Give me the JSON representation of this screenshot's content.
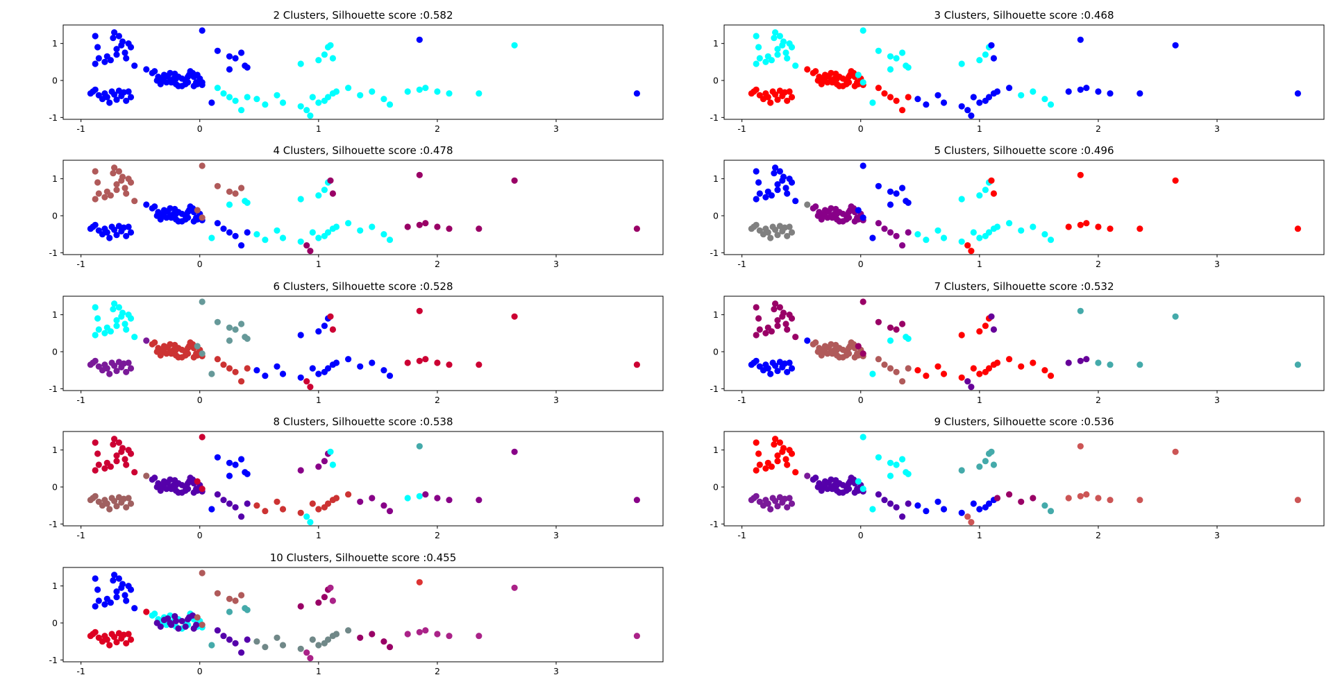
{
  "figure": {
    "layout": "5 rows x 2 columns grid of scatter subplots; last row has only the left subplot"
  },
  "chart_data": [
    {
      "type": "scatter",
      "title": "2 Clusters, Silhouette score :0.582",
      "xlim": [
        -1.15,
        3.9
      ],
      "ylim": [
        -1.05,
        1.5
      ],
      "xticks": [
        -1,
        0,
        1,
        2,
        3
      ],
      "yticks": [
        -1,
        0,
        1
      ],
      "colors": [
        "#0000ff",
        "#00ffff"
      ],
      "labels": [
        0,
        0,
        0,
        0,
        0,
        0,
        0,
        0,
        0,
        0,
        0,
        0,
        0,
        0,
        0,
        0,
        0,
        0,
        0,
        0,
        0,
        0,
        0,
        0,
        0,
        0,
        0,
        0,
        0,
        0,
        0,
        0,
        0,
        0,
        0,
        0,
        0,
        0,
        0,
        0,
        0,
        0,
        0,
        0,
        0,
        0,
        0,
        0,
        0,
        0,
        0,
        0,
        0,
        0,
        0,
        0,
        0,
        0,
        0,
        0,
        0,
        0,
        0,
        0,
        0,
        0,
        0,
        0,
        0,
        0,
        0,
        0,
        0,
        0,
        0,
        0,
        0,
        0,
        0,
        0,
        0,
        0,
        1,
        1,
        1,
        1,
        1,
        1,
        1,
        1,
        1,
        1,
        1,
        1,
        1,
        1,
        1,
        1,
        1,
        1,
        1,
        1,
        1,
        1,
        1,
        1,
        1,
        1,
        1,
        1,
        1,
        1,
        1,
        1,
        1,
        1,
        1,
        1,
        1
      ]
    },
    {
      "type": "scatter",
      "title": "3 Clusters, Silhouette score :0.468",
      "xlim": [
        -1.15,
        3.9
      ],
      "ylim": [
        -1.05,
        1.5
      ],
      "xticks": [
        -1,
        0,
        1,
        2,
        3
      ],
      "yticks": [
        -1,
        0,
        1
      ],
      "colors": [
        "#00ffff",
        "#ff0000",
        "#0000ff"
      ],
      "labels": [
        0,
        0,
        0,
        0,
        0,
        0,
        0,
        0,
        0,
        0,
        0,
        0,
        0,
        0,
        0,
        0,
        0,
        0,
        0,
        1,
        1,
        1,
        1,
        1,
        1,
        1,
        1,
        1,
        1,
        1,
        1,
        1,
        1,
        1,
        1,
        1,
        1,
        1,
        1,
        1,
        1,
        1,
        1,
        1,
        1,
        1,
        1,
        1,
        1,
        1,
        1,
        1,
        1,
        1,
        1,
        1,
        1,
        1,
        1,
        1,
        1,
        1,
        1,
        1,
        1,
        1,
        1,
        1,
        1,
        1,
        1,
        0,
        0,
        0,
        0,
        0,
        0,
        0,
        0,
        0,
        0,
        0,
        1,
        1,
        1,
        1,
        1,
        1,
        2,
        2,
        2,
        2,
        2,
        2,
        2,
        2,
        2,
        2,
        2,
        2,
        0,
        0,
        0,
        0,
        0,
        0,
        0,
        0,
        2,
        2,
        2,
        2,
        2,
        2,
        2,
        2,
        2,
        2,
        2,
        2,
        2
      ]
    },
    {
      "type": "scatter",
      "title": "4 Clusters, Silhouette score :0.478",
      "xlim": [
        -1.15,
        3.9
      ],
      "ylim": [
        -1.05,
        1.5
      ],
      "xticks": [
        -1,
        0,
        1,
        2,
        3
      ],
      "yticks": [
        -1,
        0,
        1
      ],
      "colors": [
        "#b05a5a",
        "#0000ff",
        "#00ffff",
        "#990066"
      ],
      "labels": [
        0,
        0,
        0,
        0,
        0,
        0,
        0,
        0,
        0,
        0,
        0,
        0,
        0,
        0,
        0,
        0,
        0,
        0,
        0,
        1,
        1,
        1,
        1,
        1,
        1,
        1,
        1,
        1,
        1,
        1,
        1,
        1,
        1,
        1,
        1,
        1,
        1,
        1,
        1,
        1,
        1,
        1,
        1,
        1,
        1,
        1,
        1,
        1,
        1,
        1,
        1,
        1,
        1,
        1,
        1,
        1,
        1,
        1,
        1,
        1,
        1,
        1,
        1,
        1,
        1,
        1,
        1,
        1,
        1,
        1,
        1,
        0,
        0,
        0,
        0,
        0,
        0,
        0,
        2,
        2,
        2,
        2,
        1,
        1,
        1,
        1,
        1,
        1,
        2,
        2,
        2,
        2,
        2,
        2,
        2,
        2,
        2,
        2,
        2,
        2,
        2,
        2,
        2,
        2,
        2,
        2,
        2,
        2,
        3,
        3,
        3,
        3,
        3,
        3,
        3,
        3,
        3,
        3,
        3,
        3,
        3
      ]
    },
    {
      "type": "scatter",
      "title": "5 Clusters, Silhouette score :0.496",
      "xlim": [
        -1.15,
        3.9
      ],
      "ylim": [
        -1.05,
        1.5
      ],
      "xticks": [
        -1,
        0,
        1,
        2,
        3
      ],
      "yticks": [
        -1,
        0,
        1
      ],
      "colors": [
        "#0000ff",
        "#808080",
        "#880088",
        "#00ffff",
        "#ff0000"
      ],
      "labels": [
        0,
        0,
        0,
        0,
        0,
        0,
        0,
        0,
        0,
        0,
        0,
        0,
        0,
        0,
        0,
        0,
        0,
        0,
        0,
        1,
        1,
        1,
        1,
        1,
        1,
        1,
        1,
        1,
        1,
        1,
        1,
        1,
        1,
        1,
        1,
        1,
        1,
        2,
        2,
        2,
        2,
        2,
        2,
        2,
        2,
        2,
        2,
        2,
        2,
        2,
        2,
        2,
        2,
        2,
        2,
        2,
        2,
        2,
        2,
        2,
        2,
        2,
        2,
        2,
        2,
        2,
        2,
        2,
        2,
        2,
        2,
        0,
        0,
        0,
        0,
        0,
        0,
        0,
        0,
        0,
        0,
        0,
        2,
        2,
        2,
        2,
        2,
        2,
        3,
        3,
        3,
        3,
        3,
        3,
        3,
        3,
        3,
        3,
        3,
        3,
        3,
        3,
        3,
        3,
        3,
        3,
        3,
        3,
        4,
        4,
        4,
        4,
        4,
        4,
        4,
        4,
        4,
        4,
        4,
        4,
        4
      ]
    },
    {
      "type": "scatter",
      "title": "6 Clusters, Silhouette score :0.528",
      "xlim": [
        -1.15,
        3.9
      ],
      "ylim": [
        -1.05,
        1.5
      ],
      "xticks": [
        -1,
        0,
        1,
        2,
        3
      ],
      "yticks": [
        -1,
        0,
        1
      ],
      "colors": [
        "#00ffff",
        "#7a1a99",
        "#cc3333",
        "#669999",
        "#0000ff",
        "#cc0033"
      ],
      "labels": [
        0,
        0,
        0,
        0,
        0,
        0,
        0,
        0,
        0,
        0,
        0,
        0,
        0,
        0,
        0,
        0,
        0,
        0,
        0,
        1,
        1,
        1,
        1,
        1,
        1,
        1,
        1,
        1,
        1,
        1,
        1,
        1,
        1,
        1,
        1,
        1,
        1,
        2,
        2,
        2,
        2,
        2,
        2,
        2,
        2,
        2,
        2,
        2,
        2,
        2,
        2,
        2,
        2,
        2,
        2,
        2,
        2,
        2,
        2,
        2,
        2,
        2,
        2,
        2,
        2,
        2,
        2,
        2,
        2,
        2,
        2,
        3,
        3,
        3,
        3,
        3,
        3,
        3,
        3,
        3,
        3,
        3,
        2,
        2,
        2,
        2,
        2,
        2,
        4,
        4,
        4,
        4,
        4,
        4,
        4,
        4,
        4,
        4,
        4,
        4,
        4,
        4,
        4,
        4,
        4,
        4,
        4,
        4,
        5,
        5,
        5,
        5,
        5,
        5,
        5,
        5,
        5,
        5,
        5,
        5,
        5
      ]
    },
    {
      "type": "scatter",
      "title": "7 Clusters, Silhouette score :0.532",
      "xlim": [
        -1.15,
        3.9
      ],
      "ylim": [
        -1.05,
        1.5
      ],
      "xticks": [
        -1,
        0,
        1,
        2,
        3
      ],
      "yticks": [
        -1,
        0,
        1
      ],
      "colors": [
        "#990066",
        "#0000ff",
        "#b05a5a",
        "#00ffff",
        "#ff0000",
        "#44aaaa",
        "#660099"
      ],
      "labels": [
        0,
        0,
        0,
        0,
        0,
        0,
        0,
        0,
        0,
        0,
        0,
        0,
        0,
        0,
        0,
        0,
        0,
        0,
        0,
        1,
        1,
        1,
        1,
        1,
        1,
        1,
        1,
        1,
        1,
        1,
        1,
        1,
        1,
        1,
        1,
        1,
        1,
        2,
        2,
        2,
        2,
        2,
        2,
        2,
        2,
        2,
        2,
        2,
        2,
        2,
        2,
        2,
        2,
        2,
        2,
        2,
        2,
        2,
        2,
        2,
        2,
        2,
        2,
        2,
        2,
        2,
        2,
        2,
        2,
        2,
        2,
        0,
        0,
        0,
        0,
        0,
        0,
        0,
        3,
        3,
        3,
        3,
        2,
        2,
        2,
        2,
        2,
        2,
        4,
        4,
        4,
        4,
        4,
        4,
        4,
        4,
        4,
        4,
        4,
        4,
        4,
        4,
        4,
        4,
        4,
        4,
        4,
        4,
        6,
        6,
        6,
        6,
        6,
        6,
        6,
        5,
        5,
        5,
        5,
        5,
        5
      ]
    },
    {
      "type": "scatter",
      "title": "8 Clusters, Silhouette score :0.538",
      "xlim": [
        -1.15,
        3.9
      ],
      "ylim": [
        -1.05,
        1.5
      ],
      "xticks": [
        -1,
        0,
        1,
        2,
        3
      ],
      "yticks": [
        -1,
        0,
        1
      ],
      "colors": [
        "#cc0033",
        "#a06060",
        "#5500aa",
        "#0000ff",
        "#cc3333",
        "#880088",
        "#00ffff",
        "#44aaaa"
      ],
      "labels": [
        0,
        0,
        0,
        0,
        0,
        0,
        0,
        0,
        0,
        0,
        0,
        0,
        0,
        0,
        0,
        0,
        0,
        0,
        0,
        1,
        1,
        1,
        1,
        1,
        1,
        1,
        1,
        1,
        1,
        1,
        1,
        1,
        1,
        1,
        1,
        1,
        1,
        2,
        2,
        2,
        2,
        2,
        2,
        2,
        2,
        2,
        2,
        2,
        2,
        2,
        2,
        2,
        2,
        2,
        2,
        2,
        2,
        2,
        2,
        2,
        2,
        2,
        2,
        2,
        2,
        2,
        2,
        2,
        2,
        2,
        2,
        0,
        0,
        0,
        3,
        3,
        3,
        3,
        3,
        3,
        3,
        3,
        2,
        2,
        2,
        2,
        2,
        2,
        4,
        4,
        4,
        4,
        4,
        4,
        4,
        4,
        4,
        4,
        4,
        4,
        5,
        5,
        5,
        5,
        5,
        5,
        5,
        5,
        6,
        6,
        6,
        6,
        6,
        6,
        5,
        5,
        5,
        5,
        5,
        5,
        7
      ]
    },
    {
      "type": "scatter",
      "title": "9 Clusters, Silhouette score :0.536",
      "xlim": [
        -1.15,
        3.9
      ],
      "ylim": [
        -1.05,
        1.5
      ],
      "xticks": [
        -1,
        0,
        1,
        2,
        3
      ],
      "yticks": [
        -1,
        0,
        1
      ],
      "colors": [
        "#ff0000",
        "#7a1a99",
        "#5500aa",
        "#00ffff",
        "#0000ff",
        "#990066",
        "#44aaaa",
        "#cc5555",
        "#777777"
      ],
      "labels": [
        0,
        0,
        0,
        0,
        0,
        0,
        0,
        0,
        0,
        0,
        0,
        0,
        0,
        0,
        0,
        0,
        0,
        0,
        0,
        1,
        1,
        1,
        1,
        1,
        1,
        1,
        1,
        1,
        1,
        1,
        1,
        1,
        1,
        1,
        1,
        1,
        1,
        2,
        2,
        2,
        2,
        2,
        2,
        2,
        2,
        2,
        2,
        2,
        2,
        2,
        2,
        2,
        2,
        2,
        2,
        2,
        2,
        2,
        2,
        2,
        2,
        2,
        2,
        2,
        2,
        2,
        2,
        2,
        2,
        2,
        2,
        3,
        3,
        3,
        3,
        3,
        3,
        3,
        3,
        3,
        3,
        3,
        2,
        2,
        2,
        2,
        2,
        2,
        4,
        4,
        4,
        4,
        4,
        4,
        4,
        4,
        4,
        4,
        5,
        5,
        5,
        5,
        6,
        6,
        6,
        6,
        6,
        6,
        6,
        6,
        7,
        7,
        7,
        7,
        7,
        7,
        7,
        7,
        7,
        7,
        7,
        6,
        8
      ]
    },
    {
      "type": "scatter",
      "title": "10 Clusters, Silhouette score :0.455",
      "xlim": [
        -1.15,
        3.9
      ],
      "ylim": [
        -1.05,
        1.5
      ],
      "xticks": [
        -1,
        0,
        1,
        2,
        3
      ],
      "yticks": [
        -1,
        0,
        1
      ],
      "colors": [
        "#0000ff",
        "#dd0022",
        "#00ffff",
        "#5500aa",
        "#b05a5a",
        "#708888",
        "#990066",
        "#aa2288",
        "#44aaaa",
        "#dd3333"
      ],
      "labels": [
        0,
        0,
        0,
        0,
        0,
        0,
        0,
        0,
        0,
        0,
        0,
        0,
        0,
        0,
        0,
        0,
        0,
        0,
        0,
        1,
        1,
        1,
        1,
        1,
        1,
        1,
        1,
        1,
        1,
        1,
        1,
        1,
        1,
        1,
        1,
        1,
        1,
        2,
        2,
        2,
        2,
        2,
        2,
        2,
        2,
        2,
        2,
        2,
        2,
        2,
        2,
        2,
        2,
        2,
        2,
        3,
        3,
        3,
        3,
        3,
        3,
        3,
        3,
        3,
        3,
        3,
        3,
        3,
        3,
        3,
        3,
        4,
        4,
        4,
        4,
        4,
        4,
        4,
        8,
        8,
        8,
        8,
        3,
        3,
        3,
        3,
        3,
        3,
        5,
        5,
        5,
        5,
        5,
        5,
        5,
        5,
        5,
        5,
        5,
        5,
        6,
        6,
        6,
        6,
        6,
        6,
        6,
        6,
        7,
        7,
        7,
        7,
        7,
        7,
        7,
        7,
        7,
        7,
        7,
        7,
        9
      ]
    }
  ],
  "points": {
    "x": [
      -0.88,
      -0.86,
      -0.85,
      -0.72,
      -0.68,
      -0.65,
      -0.6,
      -0.58,
      -0.63,
      -0.7,
      -0.78,
      -0.62,
      -0.75,
      -0.8,
      -0.55,
      -0.88,
      -0.7,
      -0.66,
      -0.73,
      -0.92,
      -0.9,
      -0.88,
      -0.85,
      -0.82,
      -0.8,
      -0.78,
      -0.76,
      -0.74,
      -0.72,
      -0.7,
      -0.68,
      -0.66,
      -0.64,
      -0.62,
      -0.6,
      -0.58,
      -0.45,
      -0.4,
      -0.38,
      -0.35,
      -0.32,
      -0.3,
      -0.28,
      -0.25,
      -0.22,
      -0.2,
      -0.18,
      -0.15,
      -0.12,
      -0.1,
      -0.08,
      -0.05,
      -0.02,
      0.0,
      0.02,
      -0.36,
      -0.33,
      -0.3,
      -0.27,
      -0.24,
      -0.21,
      -0.18,
      -0.15,
      -0.12,
      -0.09,
      -0.06,
      -0.03,
      -0.25,
      -0.2,
      -0.1,
      -0.05,
      -0.02,
      0.02,
      0.02,
      0.15,
      0.25,
      0.3,
      0.35,
      0.38,
      0.4,
      0.25,
      0.1,
      0.15,
      0.2,
      0.25,
      0.3,
      0.35,
      0.4,
      0.48,
      0.55,
      0.65,
      0.7,
      0.85,
      0.95,
      1.0,
      1.05,
      1.08,
      1.12,
      1.15,
      1.25,
      1.35,
      1.45,
      1.55,
      1.6,
      0.85,
      1.0,
      1.05,
      1.08,
      1.1,
      1.12,
      0.9,
      0.93,
      1.75,
      1.85,
      1.9,
      2.0,
      2.1,
      2.35,
      2.65,
      3.68,
      1.85
    ],
    "y": [
      1.2,
      0.9,
      0.6,
      1.3,
      1.2,
      1.05,
      1.0,
      0.9,
      0.75,
      0.7,
      0.65,
      0.6,
      0.55,
      0.5,
      0.4,
      0.45,
      0.85,
      0.95,
      1.15,
      -0.35,
      -0.3,
      -0.25,
      -0.4,
      -0.5,
      -0.35,
      -0.45,
      -0.6,
      -0.3,
      -0.38,
      -0.52,
      -0.28,
      -0.42,
      -0.32,
      -0.55,
      -0.3,
      -0.45,
      0.3,
      0.2,
      0.25,
      0.1,
      0.0,
      0.15,
      -0.05,
      0.2,
      0.05,
      -0.1,
      0.1,
      -0.15,
      0.0,
      -0.05,
      0.25,
      0.1,
      -0.1,
      0.05,
      -0.12,
      0.0,
      -0.1,
      0.08,
      0.12,
      -0.05,
      0.18,
      -0.15,
      0.05,
      -0.1,
      0.15,
      0.2,
      -0.05,
      0.0,
      0.05,
      0.1,
      -0.15,
      0.15,
      -0.05,
      1.35,
      0.8,
      0.65,
      0.6,
      0.75,
      0.4,
      0.35,
      0.3,
      -0.6,
      -0.2,
      -0.35,
      -0.45,
      -0.55,
      -0.8,
      -0.45,
      -0.5,
      -0.65,
      -0.4,
      -0.6,
      -0.7,
      -0.45,
      -0.6,
      -0.55,
      -0.45,
      -0.35,
      -0.3,
      -0.2,
      -0.4,
      -0.3,
      -0.5,
      -0.65,
      0.45,
      0.55,
      0.7,
      0.9,
      0.95,
      0.6,
      -0.8,
      -0.95,
      -0.3,
      -0.25,
      -0.2,
      -0.3,
      -0.35,
      -0.35,
      0.95,
      -0.35,
      1.1
    ]
  }
}
